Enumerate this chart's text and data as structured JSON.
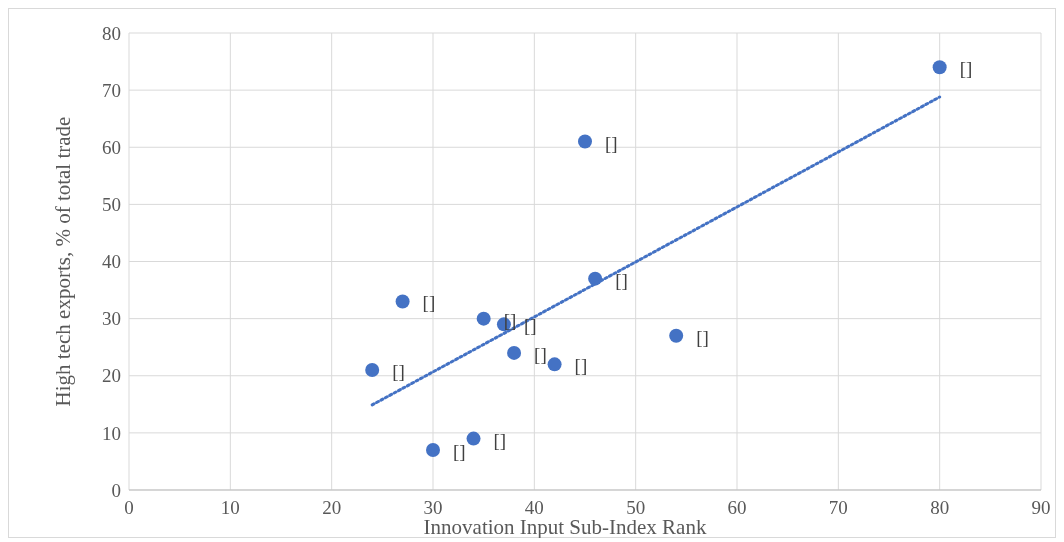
{
  "chart_data": {
    "type": "scatter",
    "xlabel": "Innovation Input Sub-Index Rank",
    "ylabel": "High tech exports, % of total trade",
    "xlim": [
      0,
      90
    ],
    "xticks": [
      0,
      10,
      20,
      30,
      40,
      50,
      60,
      70,
      80,
      90
    ],
    "ylim": [
      0,
      80
    ],
    "yticks": [
      0,
      10,
      20,
      30,
      40,
      50,
      60,
      70,
      80
    ],
    "grid": true,
    "marker": "circle",
    "series": [
      {
        "color": "#4472c4",
        "x": [
          80,
          45,
          46,
          27,
          35,
          37,
          54,
          38,
          42,
          24,
          34,
          30
        ],
        "values": [
          74,
          61,
          37,
          33,
          30,
          29,
          27,
          24,
          22,
          21,
          9,
          7
        ]
      },
      {
        "type": "line",
        "line_style": "dotted",
        "marker": "none",
        "color": "#4472c4",
        "x": [
          24,
          80
        ],
        "values": [
          14.9,
          68.8
        ]
      }
    ],
    "annotations": [
      {
        "text": "[]",
        "x": 80,
        "y": 74
      },
      {
        "text": "[]",
        "x": 45,
        "y": 61
      },
      {
        "text": "[]",
        "x": 46,
        "y": 37
      },
      {
        "text": "[]",
        "x": 27,
        "y": 33
      },
      {
        "text": "[]",
        "x": 35,
        "y": 30
      },
      {
        "text": "[]",
        "x": 37,
        "y": 29
      },
      {
        "text": "[]",
        "x": 54,
        "y": 27
      },
      {
        "text": "[]",
        "x": 38,
        "y": 24
      },
      {
        "text": "[]",
        "x": 42,
        "y": 22
      },
      {
        "text": "[]",
        "x": 24,
        "y": 21
      },
      {
        "text": "[]",
        "x": 34,
        "y": 9
      },
      {
        "text": "[]",
        "x": 30,
        "y": 7
      }
    ]
  }
}
